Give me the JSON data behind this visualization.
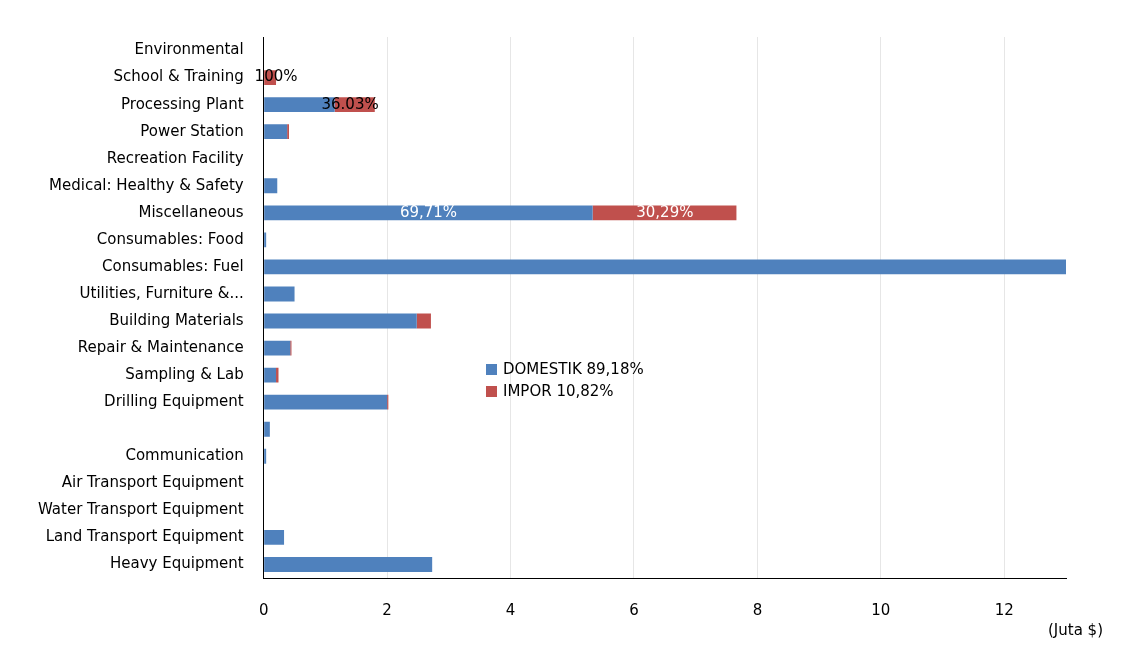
{
  "chart_data": {
    "type": "bar",
    "orientation": "horizontal",
    "stacked": true,
    "xlabel": "(Juta $)",
    "categories": [
      "Environmental",
      "School & Training",
      "Processing Plant",
      "Power Station",
      "Recreation Facility",
      "Medical: Healthy & Safety",
      "Miscellaneous",
      "Consumables: Food",
      "Consumables: Fuel",
      "Utilities, Furniture &...",
      "Building Materials",
      "Repair & Maintenance",
      "Sampling & Lab",
      "Drilling Equipment",
      null,
      "Communication",
      "Air Transport Equipment",
      "Water Transport Equipment",
      "Land Transport Equipment",
      "Heavy Equipment"
    ],
    "series": [
      {
        "name": "DOMESTIK 89,18%",
        "color": "#4f81bd",
        "values": [
          0,
          0,
          1.15,
          0.38,
          0,
          0.22,
          5.33,
          0.04,
          13.0,
          0.5,
          2.48,
          0.43,
          0.2,
          2.0,
          0.1,
          0.04,
          0,
          0,
          0.33,
          2.73
        ]
      },
      {
        "name": "IMPOR 10,82%",
        "color": "#c0504d",
        "values": [
          0,
          0.2,
          0.65,
          0.03,
          0,
          0,
          2.33,
          0,
          0,
          0,
          0.23,
          0.02,
          0.04,
          0.02,
          0,
          0,
          0,
          0,
          0,
          0
        ]
      }
    ],
    "annotations": [
      {
        "text": "100%",
        "x": 0.2,
        "y": "School & Training"
      },
      {
        "text": "36.03%",
        "x": 1.4,
        "y": "Processing Plant"
      },
      {
        "text": "69,71%",
        "x": 2.67,
        "y": "Miscellaneous"
      },
      {
        "text": "30,29%",
        "x": 6.5,
        "y": "Miscellaneous"
      }
    ],
    "xlim": [
      0,
      13
    ],
    "xticks": [
      0,
      2,
      4,
      6,
      8,
      10,
      12
    ],
    "grid": "x",
    "legend": "center"
  }
}
